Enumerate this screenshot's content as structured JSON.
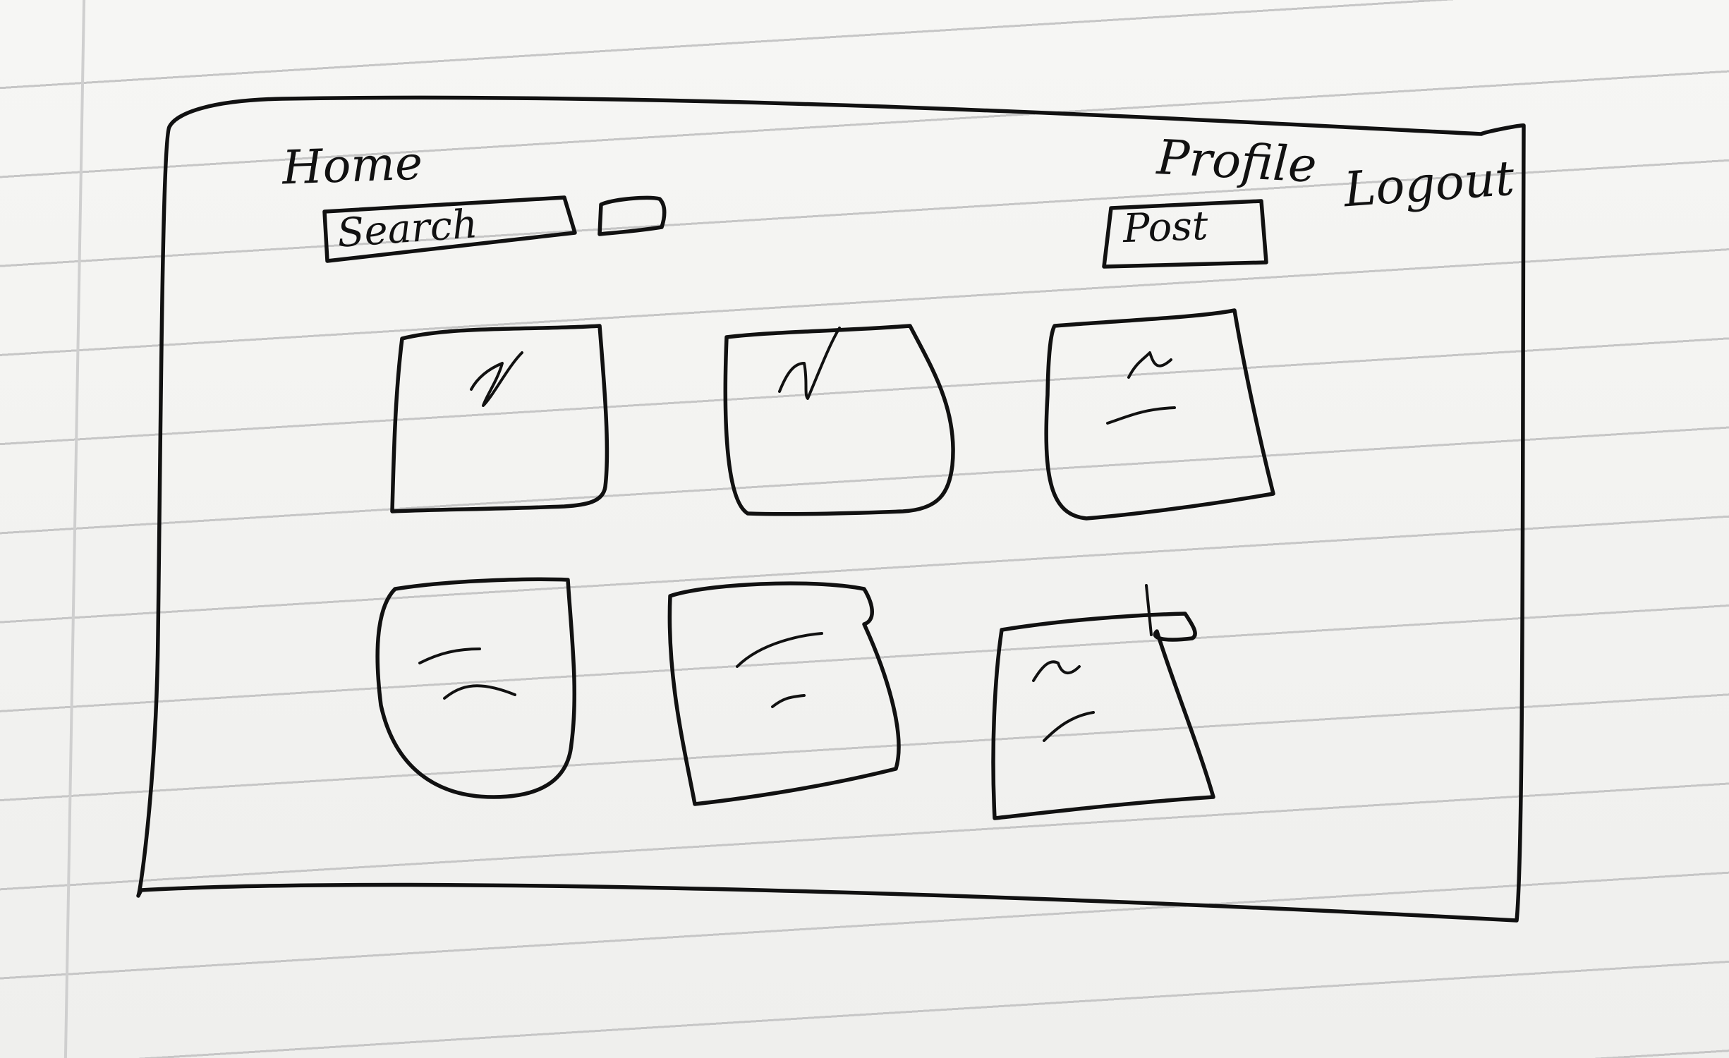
{
  "nav": {
    "home_label": "Home",
    "profile_label": "Profile",
    "logout_label": "Logout"
  },
  "toolbar": {
    "search_label": "Search",
    "post_label": "Post"
  },
  "grid": {
    "cards": [
      {
        "icon": "image-placeholder-icon"
      },
      {
        "icon": "image-placeholder-icon"
      },
      {
        "icon": "image-placeholder-icon"
      },
      {
        "icon": "image-placeholder-icon"
      },
      {
        "icon": "image-placeholder-icon"
      },
      {
        "icon": "image-placeholder-icon"
      }
    ]
  },
  "colors": {
    "ink": "#111111",
    "paper": "#f2f2f0",
    "rule_line": "#c6c6c6"
  }
}
